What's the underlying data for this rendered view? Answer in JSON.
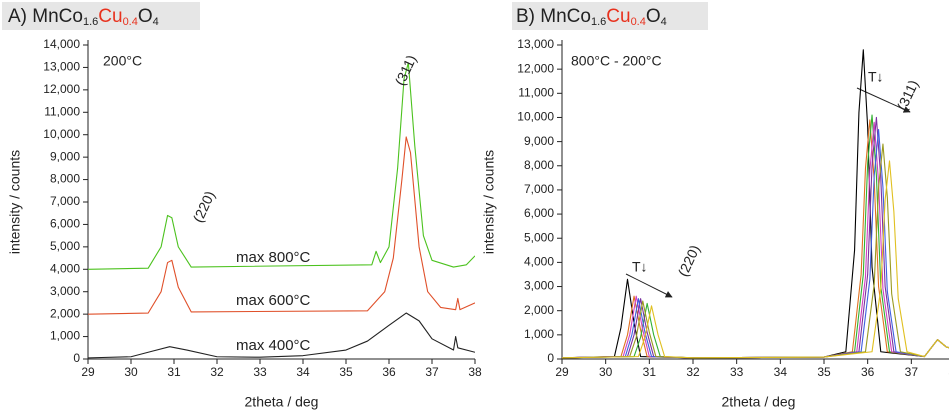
{
  "chart_data": [
    {
      "type": "line",
      "title": [
        {
          "text": "A) MnCo"
        },
        {
          "text": "1.6",
          "sub": true
        },
        {
          "text": "Cu",
          "color": "#e8321e"
        },
        {
          "text": "0.4",
          "sub": true,
          "color": "#e8321e"
        },
        {
          "text": "O"
        },
        {
          "text": "4",
          "sub": true
        }
      ],
      "x_label": "2theta / deg",
      "y_label": "intensity / counts",
      "annotations": [
        "200°C",
        "(220)",
        "(311)"
      ],
      "xlim": [
        29,
        38
      ],
      "xticks": [
        29,
        30,
        31,
        32,
        33,
        34,
        35,
        36,
        37,
        38
      ],
      "ylim": [
        0,
        14000
      ],
      "yticks": [
        0,
        {
          "value": 1000,
          "label": "1,000"
        },
        {
          "value": 2000,
          "label": "2,000"
        },
        {
          "value": 3000,
          "label": "3,000"
        },
        {
          "value": 4000,
          "label": "4,000"
        },
        {
          "value": 5000,
          "label": "5,000"
        },
        {
          "value": 6000,
          "label": "6,000"
        },
        {
          "value": 7000,
          "label": "7,000"
        },
        {
          "value": 8000,
          "label": "8,000"
        },
        {
          "value": 9000,
          "label": "9,000"
        },
        {
          "value": 10000,
          "label": "10,000"
        },
        {
          "value": 11000,
          "label": "11,000"
        },
        {
          "value": 12000,
          "label": "12,000"
        },
        {
          "value": 13000,
          "label": "13,000"
        },
        {
          "value": 14000,
          "label": "14,000"
        }
      ],
      "series": [
        {
          "name": "max 800°C",
          "color": "#4cc21e",
          "x": [
            29,
            30.4,
            30.7,
            30.85,
            30.95,
            31.1,
            31.4,
            35.6,
            35.7,
            35.8,
            36.0,
            36.2,
            36.35,
            36.45,
            36.6,
            36.8,
            37.0,
            37.5,
            37.8,
            38
          ],
          "values": [
            4000,
            4050,
            5000,
            6400,
            6300,
            5000,
            4100,
            4200,
            4800,
            4300,
            5000,
            8500,
            12500,
            13200,
            9500,
            5500,
            4400,
            4100,
            4200,
            4600
          ]
        },
        {
          "name": "max 600°C",
          "color": "#e0502a",
          "x": [
            29,
            30.4,
            30.7,
            30.85,
            30.95,
            31.1,
            31.4,
            35.5,
            35.9,
            36.1,
            36.3,
            36.4,
            36.5,
            36.7,
            36.9,
            37.2,
            37.55,
            37.6,
            37.65,
            38
          ],
          "values": [
            2000,
            2050,
            3000,
            4300,
            4400,
            3200,
            2100,
            2150,
            3000,
            4500,
            8000,
            9900,
            9200,
            5000,
            3000,
            2300,
            2200,
            2700,
            2200,
            2500
          ]
        },
        {
          "name": "max 400°C",
          "color": "#222222",
          "x": [
            29,
            30,
            30.5,
            30.9,
            31.3,
            32,
            33,
            34,
            35,
            35.5,
            36,
            36.4,
            36.7,
            37,
            37.5,
            37.55,
            37.6,
            38
          ],
          "values": [
            50,
            100,
            350,
            550,
            400,
            100,
            80,
            150,
            400,
            800,
            1500,
            2050,
            1700,
            900,
            400,
            1000,
            500,
            300
          ]
        }
      ]
    },
    {
      "type": "line",
      "title": [
        {
          "text": "B) MnCo"
        },
        {
          "text": "1.6",
          "sub": true
        },
        {
          "text": "Cu",
          "color": "#e8321e"
        },
        {
          "text": "0.4",
          "sub": true,
          "color": "#e8321e"
        },
        {
          "text": "O"
        },
        {
          "text": "4",
          "sub": true
        }
      ],
      "x_label": "2theta / deg",
      "y_label": "intensity / counts",
      "annotations": [
        "800°C - 200°C",
        "T↓",
        "(220)",
        "T↓",
        "(311)"
      ],
      "xlim": [
        29,
        38
      ],
      "xticks": [
        29,
        30,
        31,
        32,
        33,
        34,
        35,
        36,
        37,
        38
      ],
      "ylim": [
        0,
        13000
      ],
      "yticks": [
        0,
        {
          "value": 1000,
          "label": "1,000"
        },
        {
          "value": 2000,
          "label": "2,000"
        },
        {
          "value": 3000,
          "label": "3,000"
        },
        {
          "value": 4000,
          "label": "4,000"
        },
        {
          "value": 5000,
          "label": "5,000"
        },
        {
          "value": 6000,
          "label": "6,000"
        },
        {
          "value": 7000,
          "label": "7,000"
        },
        {
          "value": 8000,
          "label": "8,000"
        },
        {
          "value": 9000,
          "label": "9,000"
        },
        {
          "value": 10000,
          "label": "10,000"
        },
        {
          "value": 11000,
          "label": "11,000"
        },
        {
          "value": 12000,
          "label": "12,000"
        },
        {
          "value": 13000,
          "label": "13,000"
        }
      ],
      "series": [
        {
          "color": "#000000",
          "x": [
            29,
            30.2,
            30.35,
            30.5,
            30.65,
            30.8,
            32,
            35,
            35.5,
            35.7,
            35.8,
            35.9,
            36,
            36.1,
            36.3,
            37.3,
            37.6,
            37.8,
            38
          ],
          "values": [
            50,
            100,
            1300,
            3300,
            1500,
            100,
            50,
            80,
            300,
            4500,
            10200,
            12800,
            9600,
            3800,
            300,
            100,
            800,
            500,
            400
          ]
        },
        {
          "color": "#e07020",
          "x": [
            29,
            30.35,
            30.5,
            30.65,
            30.8,
            30.95,
            32,
            35,
            35.65,
            35.85,
            35.95,
            36.05,
            36.15,
            36.25,
            36.45,
            37.3,
            37.6,
            37.8,
            38
          ],
          "values": [
            50,
            100,
            1000,
            2600,
            1200,
            100,
            50,
            80,
            300,
            3500,
            7900,
            9900,
            7400,
            3000,
            300,
            100,
            800,
            500,
            400
          ]
        },
        {
          "color": "#30b030",
          "x": [
            29,
            30.65,
            30.8,
            30.95,
            31.1,
            31.25,
            32,
            35,
            35.7,
            35.9,
            36,
            36.1,
            36.2,
            36.3,
            36.5,
            37.3,
            37.6,
            37.8,
            38
          ],
          "values": [
            50,
            100,
            900,
            2300,
            1000,
            100,
            50,
            80,
            300,
            3500,
            8100,
            10100,
            7600,
            3000,
            300,
            100,
            800,
            500,
            400
          ]
        },
        {
          "color": "#d040c0",
          "x": [
            29,
            30.4,
            30.55,
            30.7,
            30.85,
            31,
            32,
            35,
            35.75,
            35.95,
            36.05,
            36.15,
            36.25,
            36.35,
            36.55,
            37.3,
            37.6,
            37.8,
            38
          ],
          "values": [
            50,
            100,
            1000,
            2600,
            1200,
            100,
            50,
            80,
            300,
            3400,
            7800,
            9800,
            7300,
            2900,
            300,
            100,
            800,
            500,
            400
          ]
        },
        {
          "color": "#7a30a0",
          "x": [
            29,
            30.5,
            30.65,
            30.8,
            30.95,
            31.1,
            32,
            35,
            35.8,
            36,
            36.1,
            36.2,
            36.3,
            36.4,
            36.6,
            37.3,
            37.6,
            37.8,
            38
          ],
          "values": [
            50,
            100,
            1000,
            2500,
            1100,
            100,
            50,
            80,
            300,
            3500,
            8000,
            10000,
            7500,
            3000,
            300,
            100,
            800,
            500,
            400
          ]
        },
        {
          "color": "#4060e0",
          "x": [
            29,
            30.45,
            30.6,
            30.75,
            30.9,
            31.05,
            32,
            35,
            35.85,
            36.05,
            36.15,
            36.25,
            36.35,
            36.45,
            36.65,
            37.3,
            37.6,
            37.8,
            38
          ],
          "values": [
            50,
            100,
            1000,
            2500,
            1100,
            100,
            50,
            80,
            300,
            3300,
            7600,
            9500,
            7100,
            2800,
            300,
            100,
            800,
            500,
            400
          ]
        },
        {
          "color": "#9a9a20",
          "x": [
            29,
            30.55,
            30.7,
            30.85,
            31,
            31.15,
            32,
            35,
            35.95,
            36.15,
            36.25,
            36.35,
            36.45,
            36.55,
            36.75,
            37.3,
            37.6,
            37.8,
            38
          ],
          "values": [
            50,
            100,
            900,
            2400,
            1100,
            100,
            50,
            80,
            300,
            3100,
            7100,
            8900,
            6700,
            2700,
            300,
            100,
            800,
            500,
            400
          ]
        },
        {
          "color": "#e0c020",
          "x": [
            29,
            30.75,
            30.9,
            31.05,
            31.2,
            31.35,
            32,
            35,
            36.1,
            36.3,
            36.4,
            36.5,
            36.6,
            36.7,
            36.9,
            37.3,
            37.6,
            37.8,
            38
          ],
          "values": [
            50,
            100,
            900,
            2200,
            1000,
            100,
            50,
            80,
            300,
            2900,
            6600,
            8200,
            6100,
            2500,
            300,
            100,
            800,
            500,
            400
          ]
        }
      ]
    }
  ]
}
